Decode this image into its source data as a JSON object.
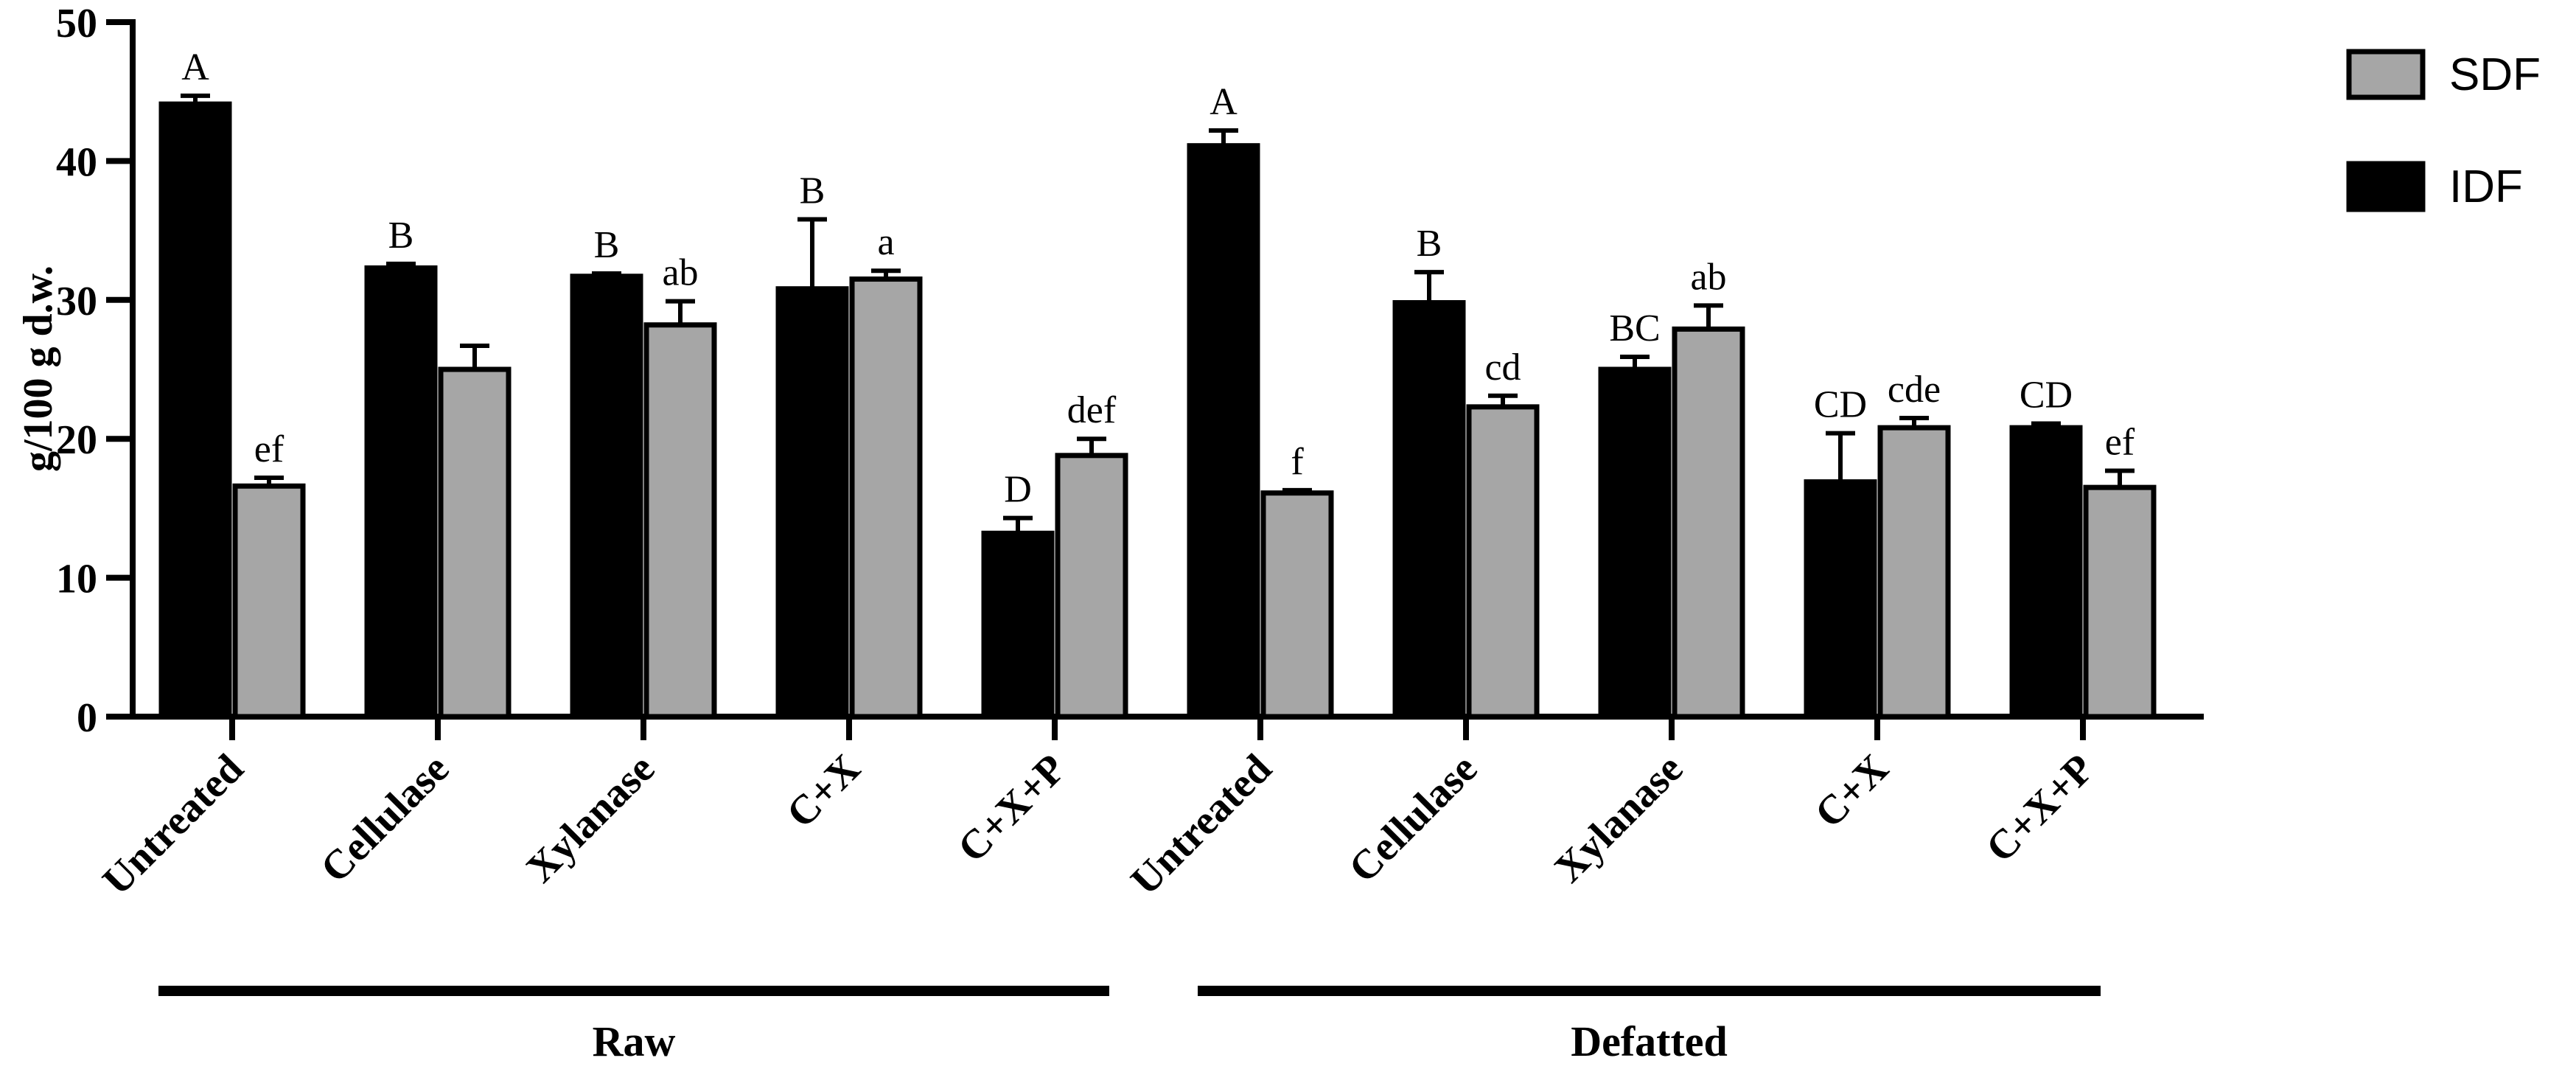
{
  "chart_data": {
    "type": "bar",
    "ylabel": "g/100 g d.w.",
    "ylim": [
      0,
      50
    ],
    "yticks": [
      0,
      10,
      20,
      30,
      40,
      50
    ],
    "categories": [
      "Untreated",
      "Cellulase",
      "Xylanase",
      "C+X",
      "C+X+P",
      "Untreated",
      "Cellulase",
      "Xylanase",
      "C+X",
      "C+X+P"
    ],
    "groups": [
      {
        "label": "Raw",
        "categories": [
          0,
          1,
          2,
          3,
          4
        ]
      },
      {
        "label": "Defatted",
        "categories": [
          5,
          6,
          7,
          8,
          9
        ]
      }
    ],
    "legend_position": "top-right",
    "series": [
      {
        "name": "IDF",
        "color": "#000000",
        "values": [
          44.1,
          32.3,
          31.7,
          30.8,
          13.2,
          41.1,
          29.8,
          25.0,
          16.9,
          20.8
        ],
        "errors": [
          0.6,
          0.3,
          0.2,
          5.0,
          1.1,
          1.1,
          2.2,
          0.9,
          3.5,
          0.3
        ],
        "letters": [
          "A",
          "B",
          "B",
          "B",
          "D",
          "A",
          "B",
          "BC",
          "CD",
          "CD"
        ]
      },
      {
        "name": "SDF",
        "color": "#a6a6a6",
        "values": [
          16.6,
          25.0,
          28.2,
          31.5,
          18.8,
          16.1,
          22.3,
          27.9,
          20.8,
          16.5
        ],
        "errors": [
          0.6,
          1.7,
          1.7,
          0.6,
          1.2,
          0.2,
          0.8,
          1.7,
          0.7,
          1.2
        ],
        "letters": [
          "ef",
          "",
          "ab",
          "a",
          "def",
          "f",
          "cd",
          "ab",
          "cde",
          "ef"
        ]
      }
    ]
  }
}
